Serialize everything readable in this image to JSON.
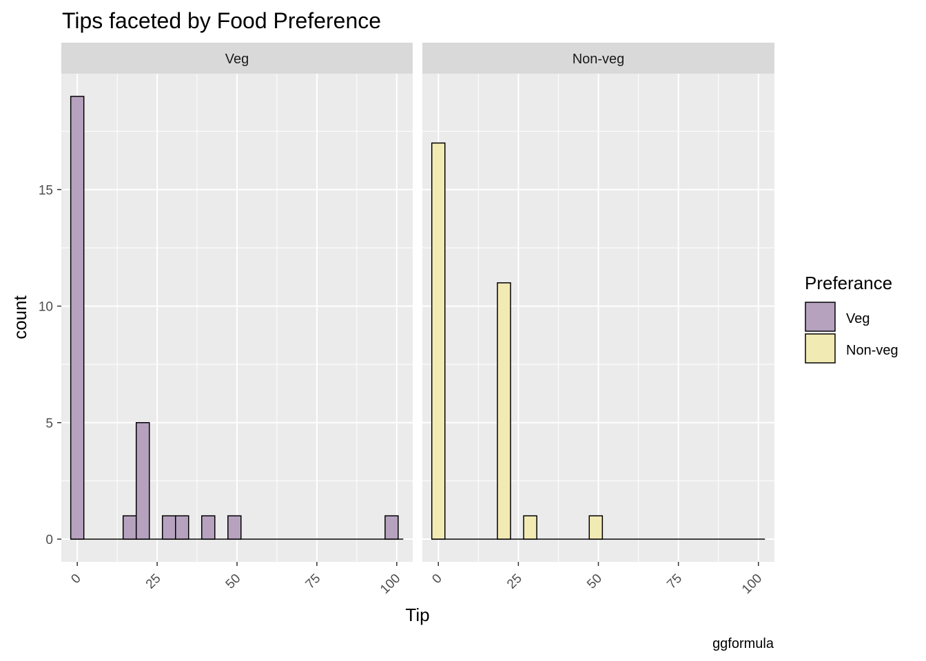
{
  "chart_data": {
    "type": "bar",
    "title": "Tips faceted by Food Preference",
    "xlabel": "Tip",
    "ylabel": "count",
    "caption": "ggformula",
    "xlim": [
      -5,
      105
    ],
    "ylim": [
      0,
      19.95
    ],
    "x_breaks": [
      0,
      25,
      50,
      75,
      100
    ],
    "x_tick_labels": [
      "0",
      "25",
      "50",
      "75",
      "100"
    ],
    "y_breaks": [
      0,
      5,
      10,
      15
    ],
    "y_tick_labels": [
      "0",
      "5",
      "10",
      "15"
    ],
    "grid": true,
    "legend": {
      "title": "Preferance",
      "position": "right",
      "entries": [
        {
          "label": "Veg",
          "color": "#b6a2bf"
        },
        {
          "label": "Non-veg",
          "color": "#f2eab3"
        }
      ]
    },
    "bin_width": 4.1,
    "panels": [
      {
        "strip": "Veg",
        "series_name": "Veg",
        "color": "#b6a2bf",
        "bins": [
          {
            "x": 0,
            "count": 19
          },
          {
            "x": 16.4,
            "count": 1
          },
          {
            "x": 20.5,
            "count": 5
          },
          {
            "x": 28.7,
            "count": 1
          },
          {
            "x": 32.8,
            "count": 1
          },
          {
            "x": 41.0,
            "count": 1
          },
          {
            "x": 49.2,
            "count": 1
          },
          {
            "x": 98.4,
            "count": 1
          }
        ]
      },
      {
        "strip": "Non-veg",
        "series_name": "Non-veg",
        "color": "#f2eab3",
        "bins": [
          {
            "x": 0,
            "count": 17
          },
          {
            "x": 20.5,
            "count": 11
          },
          {
            "x": 28.7,
            "count": 1
          },
          {
            "x": 49.2,
            "count": 1
          }
        ]
      }
    ]
  }
}
